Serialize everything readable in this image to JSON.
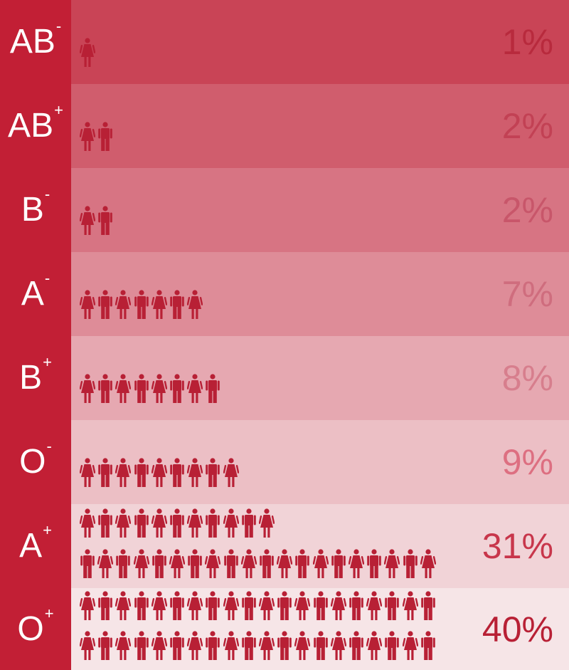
{
  "chart_data": {
    "type": "pictogram",
    "unit": "1 figure = 1%",
    "categories": [
      "AB-",
      "AB+",
      "B-",
      "A-",
      "B+",
      "O-",
      "A+",
      "O+"
    ],
    "rows": [
      {
        "group": "AB",
        "sign": "-",
        "value": 1,
        "label": "1%"
      },
      {
        "group": "AB",
        "sign": "+",
        "value": 2,
        "label": "2%"
      },
      {
        "group": "B",
        "sign": "-",
        "value": 2,
        "label": "2%"
      },
      {
        "group": "A",
        "sign": "-",
        "value": 7,
        "label": "7%"
      },
      {
        "group": "B",
        "sign": "+",
        "value": 8,
        "label": "8%"
      },
      {
        "group": "O",
        "sign": "-",
        "value": 9,
        "label": "9%"
      },
      {
        "group": "A",
        "sign": "+",
        "value": 31,
        "label": "31%"
      },
      {
        "group": "O",
        "sign": "+",
        "value": 40,
        "label": "40%"
      }
    ],
    "colors": {
      "label_column": "#c21f35",
      "figure": "#b82035",
      "label_text": "#ffffff",
      "bands": [
        "#c94456",
        "#d05d6d",
        "#d77483",
        "#de8c98",
        "#e6a8b1",
        "#ecbfc5",
        "#f1d3d7",
        "#f6e5e7"
      ],
      "percent_text": [
        "#b82a3d",
        "#c24154",
        "#c8566a",
        "#cf6d7e",
        "#d77e8d",
        "#dd6f81",
        "#c8364b",
        "#b82035"
      ]
    }
  }
}
